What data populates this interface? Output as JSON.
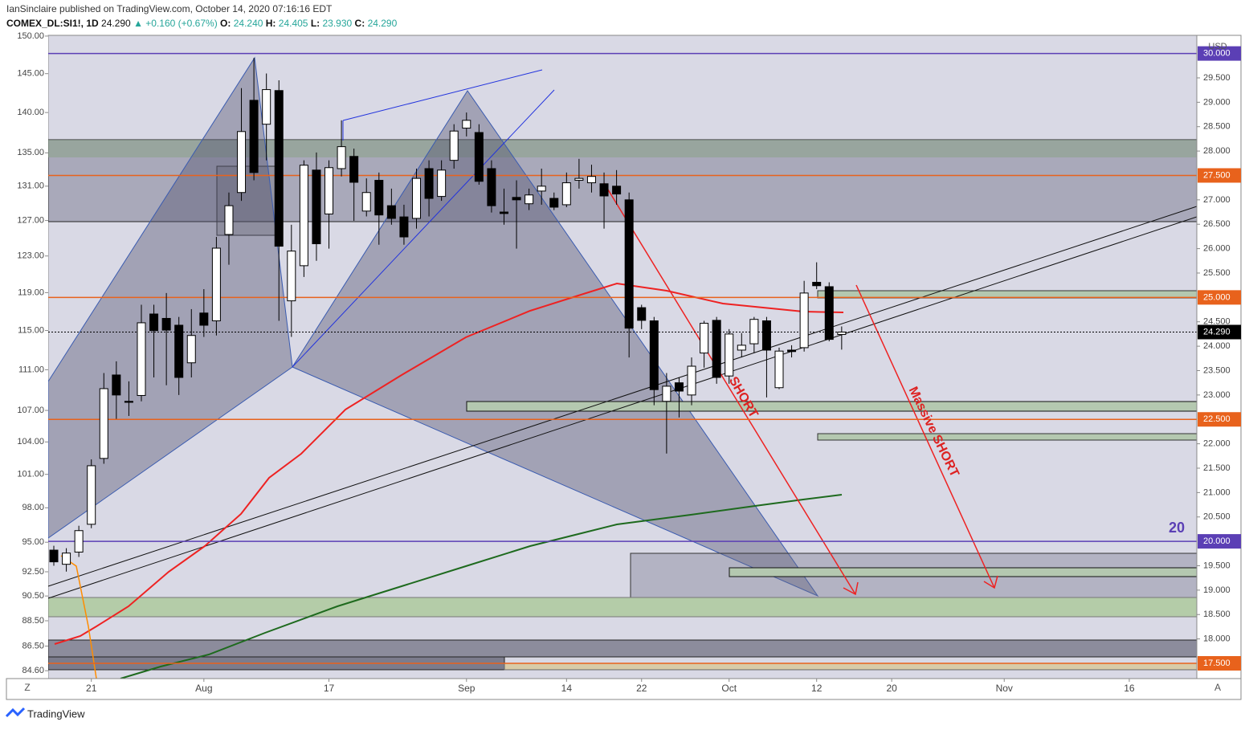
{
  "header": {
    "publisher": "IanSinclaire published on TradingView.com, October 14, 2020 07:16:16 EDT",
    "symbol": "COMEX_DL:SI1!, 1D",
    "last": "24.290",
    "change": "▲ +0.160 (+0.67%)",
    "ohlc": [
      {
        "key": "O:",
        "value": "24.240"
      },
      {
        "key": "H:",
        "value": "24.405"
      },
      {
        "key": "L:",
        "value": "23.930"
      },
      {
        "key": "C:",
        "value": "24.290"
      }
    ]
  },
  "chart_data": {
    "type": "candlestick",
    "currency": "USD",
    "x": [
      0,
      1,
      2,
      3,
      4,
      5,
      6,
      7,
      8,
      9,
      10,
      11,
      12,
      13,
      14,
      15,
      16,
      17,
      18,
      19,
      20,
      21,
      22,
      23,
      24,
      25,
      26,
      27,
      28,
      29,
      30,
      31,
      32,
      33,
      34,
      35,
      36,
      37,
      38,
      39,
      40,
      41,
      42,
      43,
      44,
      45,
      46,
      47,
      48,
      49,
      50,
      51,
      52,
      53,
      54,
      55,
      56,
      57,
      58,
      59,
      60,
      61,
      62,
      63
    ],
    "open": [
      19.82,
      19.53,
      19.78,
      20.35,
      21.7,
      23.41,
      22.87,
      22.99,
      24.66,
      24.57,
      24.43,
      23.66,
      24.68,
      24.52,
      26.29,
      27.15,
      29.04,
      28.55,
      29.24,
      24.93,
      25.65,
      27.61,
      26.71,
      27.64,
      27.89,
      26.77,
      27.4,
      26.88,
      26.65,
      26.62,
      27.64,
      27.07,
      27.81,
      28.47,
      28.38,
      27.64,
      26.75,
      27.05,
      26.92,
      27.18,
      27.03,
      26.9,
      27.4,
      27.35,
      27.33,
      27.28,
      27.0,
      24.79,
      24.52,
      22.87,
      23.25,
      23.0,
      23.86,
      24.53,
      23.39,
      23.92,
      24.05,
      24.52,
      23.15,
      23.92,
      23.97,
      25.31,
      25.22,
      24.24
    ],
    "high": [
      19.91,
      19.86,
      20.32,
      21.68,
      23.45,
      23.69,
      23.28,
      24.85,
      24.85,
      25.09,
      24.6,
      24.76,
      25.17,
      26.24,
      27.15,
      29.29,
      29.91,
      29.59,
      29.45,
      26.49,
      27.81,
      27.97,
      27.81,
      28.63,
      28.05,
      27.44,
      27.56,
      27.23,
      26.9,
      27.64,
      27.81,
      27.81,
      28.55,
      28.79,
      28.55,
      27.81,
      27.23,
      27.4,
      27.23,
      27.64,
      27.15,
      27.56,
      27.84,
      27.72,
      27.56,
      27.61,
      27.15,
      24.85,
      24.6,
      23.45,
      23.36,
      23.77,
      24.52,
      24.6,
      24.35,
      24.27,
      24.6,
      24.6,
      23.97,
      24.02,
      25.34,
      25.72,
      25.31,
      24.405
    ],
    "low": [
      19.5,
      19.38,
      19.68,
      20.27,
      21.59,
      22.51,
      22.57,
      22.87,
      23.36,
      23.2,
      23.0,
      23.36,
      24.19,
      24.22,
      25.67,
      26.98,
      27.4,
      27.81,
      24.52,
      24.19,
      25.42,
      25.75,
      26.0,
      27.48,
      26.57,
      26.66,
      26.08,
      26.49,
      26.08,
      26.41,
      26.66,
      26.98,
      27.64,
      28.3,
      27.31,
      26.74,
      26.49,
      26.0,
      26.79,
      26.9,
      26.79,
      26.85,
      27.23,
      27.15,
      26.41,
      26.9,
      23.77,
      24.35,
      22.79,
      21.8,
      22.54,
      22.79,
      23.56,
      23.23,
      23.23,
      23.77,
      23.86,
      22.95,
      23.12,
      23.77,
      23.89,
      25.17,
      24.1,
      23.93
    ],
    "close": [
      19.58,
      19.76,
      20.22,
      21.55,
      23.13,
      23.0,
      22.85,
      24.48,
      24.32,
      24.33,
      23.36,
      24.22,
      24.43,
      26.01,
      26.88,
      28.4,
      27.56,
      29.26,
      26.05,
      25.95,
      27.71,
      26.1,
      27.66,
      28.09,
      27.36,
      27.15,
      26.69,
      26.62,
      26.24,
      27.44,
      27.03,
      27.61,
      28.41,
      28.63,
      27.38,
      26.88,
      26.72,
      27.0,
      27.1,
      27.28,
      26.85,
      27.35,
      27.44,
      27.48,
      27.08,
      27.12,
      24.37,
      24.53,
      23.11,
      23.18,
      23.08,
      23.59,
      24.47,
      23.36,
      24.25,
      24.02,
      24.55,
      23.92,
      23.9,
      23.89,
      25.09,
      25.24,
      24.14,
      24.29
    ],
    "xlim": [
      -0.45,
      91.4
    ],
    "xticks": [
      {
        "value": 3,
        "label": "21"
      },
      {
        "value": 12,
        "label": "Aug"
      },
      {
        "value": 22,
        "label": "17"
      },
      {
        "value": 33,
        "label": "Sep"
      },
      {
        "value": 41,
        "label": "14"
      },
      {
        "value": 47,
        "label": "22"
      },
      {
        "value": 54,
        "label": "Oct"
      },
      {
        "value": 61,
        "label": "12"
      },
      {
        "value": 67,
        "label": "20"
      },
      {
        "value": 76,
        "label": "Nov"
      },
      {
        "value": 86,
        "label": "16"
      }
    ],
    "ylim": [
      17.187,
      30.372
    ],
    "yticks": [
      {
        "value": 29.5,
        "label": "29.500"
      },
      {
        "value": 29,
        "label": "29.000"
      },
      {
        "value": 28.5,
        "label": "28.500"
      },
      {
        "value": 28,
        "label": "28.000"
      },
      {
        "value": 27,
        "label": "27.000"
      },
      {
        "value": 26.5,
        "label": "26.500"
      },
      {
        "value": 26,
        "label": "26.000"
      },
      {
        "value": 25.5,
        "label": "25.500"
      },
      {
        "value": 24.5,
        "label": "24.500"
      },
      {
        "value": 24,
        "label": "24.000"
      },
      {
        "value": 23.5,
        "label": "23.500"
      },
      {
        "value": 23,
        "label": "23.000"
      },
      {
        "value": 22,
        "label": "22.000"
      },
      {
        "value": 21.5,
        "label": "21.500"
      },
      {
        "value": 21,
        "label": "21.000"
      },
      {
        "value": 20.5,
        "label": "20.500"
      },
      {
        "value": 19.5,
        "label": "19.500"
      },
      {
        "value": 19,
        "label": "19.000"
      },
      {
        "value": 18.5,
        "label": "18.500"
      },
      {
        "value": 18,
        "label": "18.000"
      }
    ],
    "y2lim": [
      84.0,
      150.1
    ],
    "y2scale": "log",
    "y2ticks": [
      {
        "value": 150,
        "label": "150.00"
      },
      {
        "value": 145,
        "label": "145.00"
      },
      {
        "value": 140,
        "label": "140.00"
      },
      {
        "value": 135,
        "label": "135.00"
      },
      {
        "value": 131,
        "label": "131.00"
      },
      {
        "value": 127,
        "label": "127.00"
      },
      {
        "value": 123,
        "label": "123.00"
      },
      {
        "value": 119,
        "label": "119.00"
      },
      {
        "value": 115,
        "label": "115.00"
      },
      {
        "value": 111,
        "label": "111.00"
      },
      {
        "value": 107,
        "label": "107.00"
      },
      {
        "value": 104,
        "label": "104.00"
      },
      {
        "value": 101,
        "label": "101.00"
      },
      {
        "value": 98,
        "label": "98.00"
      },
      {
        "value": 95,
        "label": "95.00"
      },
      {
        "value": 92.5,
        "label": "92.50"
      },
      {
        "value": 90.5,
        "label": "90.50"
      },
      {
        "value": 88.5,
        "label": "88.50"
      },
      {
        "value": 86.5,
        "label": "86.50"
      },
      {
        "value": 84.6,
        "label": "84.60"
      }
    ],
    "price_lines": [
      {
        "value": 30,
        "label": "30.000",
        "color": "#5b3fb5"
      },
      {
        "value": 27.5,
        "label": "27.500",
        "color": "#e8621c"
      },
      {
        "value": 25,
        "label": "25.000",
        "color": "#e8621c"
      },
      {
        "value": 24.29,
        "label": "24.290",
        "color": "#000000"
      },
      {
        "value": 22.5,
        "label": "22.500",
        "color": "#e8621c"
      },
      {
        "value": 20,
        "label": "20.000",
        "color": "#5b3fb5"
      },
      {
        "value": 17.5,
        "label": "17.500",
        "color": "#e8621c"
      }
    ],
    "annotations": [
      "Massive SHORT",
      "SHORT",
      "20"
    ]
  },
  "footer": {
    "left_button": "Z",
    "right_button": "A",
    "brand": "TradingView"
  }
}
